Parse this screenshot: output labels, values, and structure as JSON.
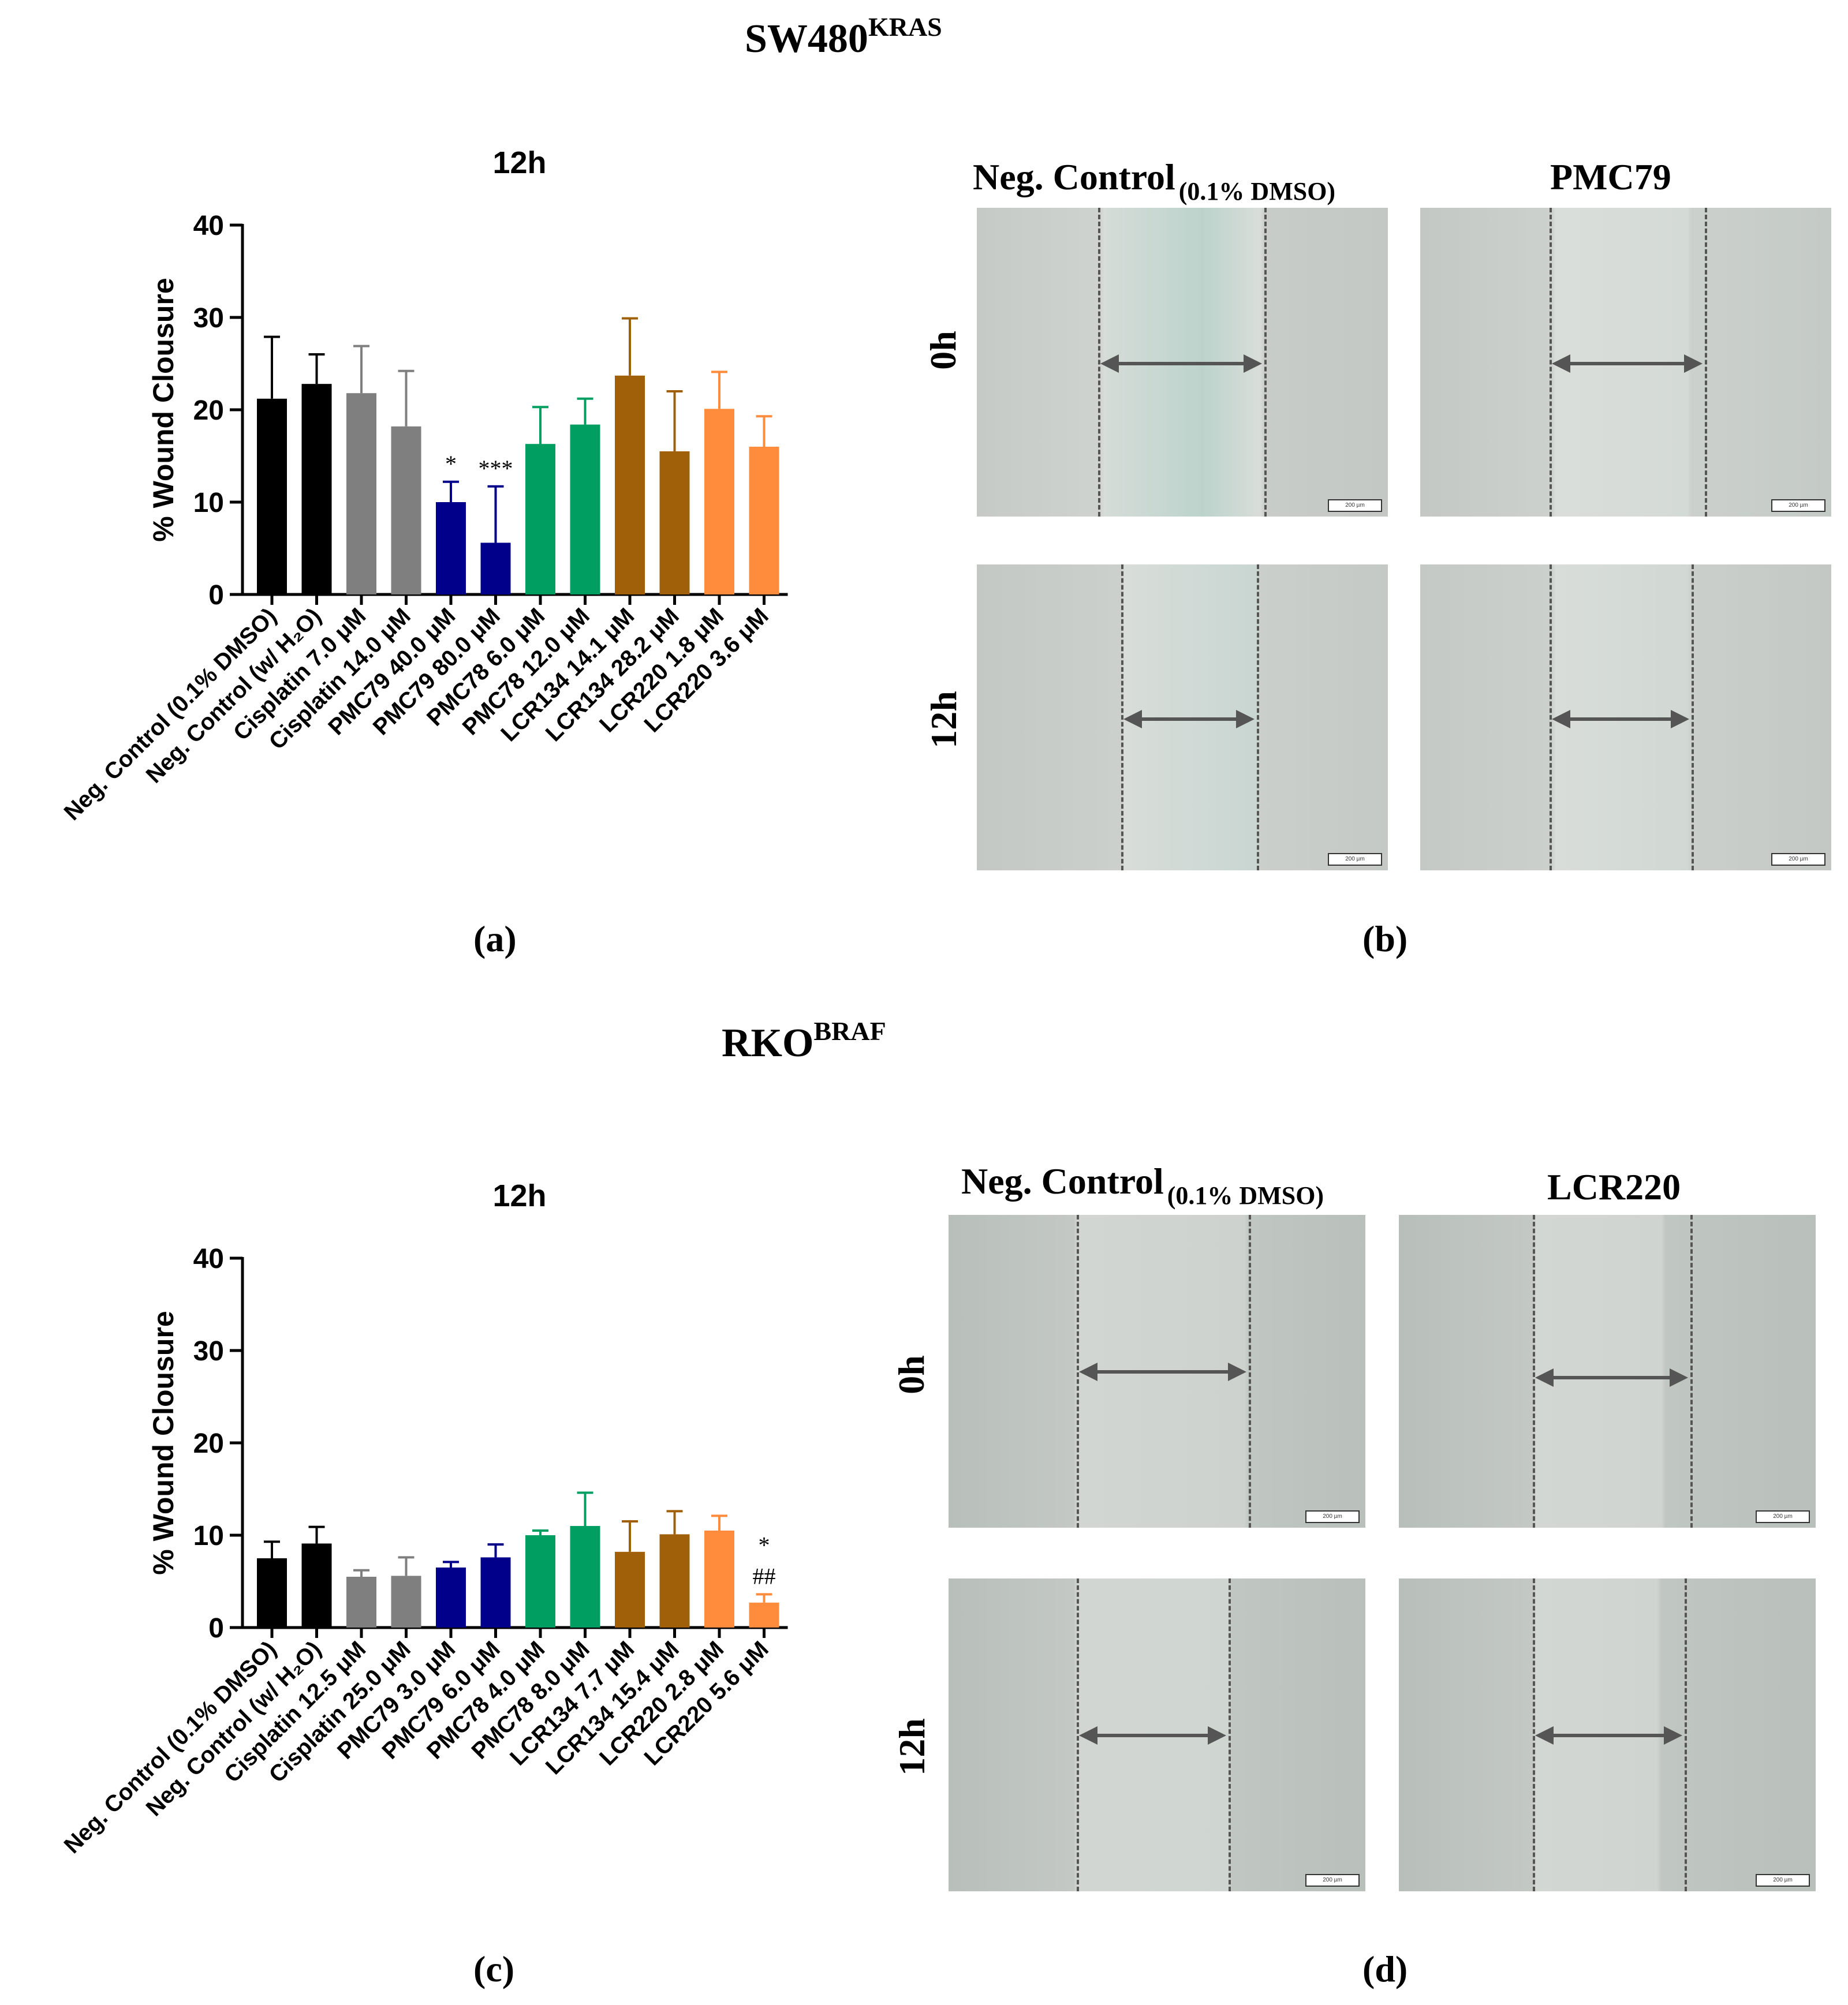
{
  "sections": [
    {
      "title_main": "SW480",
      "title_sup": "KRAS",
      "chart_label": "(a)",
      "image_label": "(b)",
      "images": {
        "left_title": "Neg. Control",
        "left_sub": "(0.1% DMSO)",
        "right_title": "PMC79",
        "row_labels": [
          "0h",
          "12h"
        ],
        "scale": "200 µm"
      }
    },
    {
      "title_main": "RKO",
      "title_sup": "BRAF",
      "chart_label": "(c)",
      "image_label": "(d)",
      "images": {
        "left_title": "Neg. Control",
        "left_sub": "(0.1% DMSO)",
        "right_title": "LCR220",
        "row_labels": [
          "0h",
          "12h"
        ],
        "scale": "200 µm"
      }
    }
  ],
  "chart_data": [
    {
      "type": "bar",
      "title": "12h",
      "ylabel": "% Wound Clousure",
      "xlabel": "",
      "ylim": [
        0,
        40
      ],
      "yticks": [
        0,
        10,
        20,
        30,
        40
      ],
      "categories": [
        "Neg. Control (0.1% DMSO)",
        "Neg. Control (w/ H₂O)",
        "Cisplatin 7.0 μM",
        "Cisplatin 14.0 μM",
        "PMC79 40.0 μM",
        "PMC79 80.0 μM",
        "PMC78 6.0 μM",
        "PMC78 12.0 μM",
        "LCR134 14.1 μM",
        "LCR134 28.2 μM",
        "LCR220 1.8 μM",
        "LCR220 3.6 μM"
      ],
      "values": [
        21.2,
        22.8,
        21.8,
        18.2,
        10.0,
        5.6,
        16.3,
        18.4,
        23.7,
        15.5,
        20.1,
        16.0
      ],
      "errors": [
        6.7,
        3.2,
        5.1,
        6.0,
        2.2,
        6.1,
        4.0,
        2.8,
        6.2,
        6.5,
        4.0,
        3.3
      ],
      "colors": [
        "#000000",
        "#000000",
        "#7f7f7f",
        "#7f7f7f",
        "#00008b",
        "#00008b",
        "#009e60",
        "#009e60",
        "#a0600a",
        "#a0600a",
        "#ff8c3c",
        "#ff8c3c"
      ],
      "annotations": [
        "",
        "",
        "",
        "",
        "*",
        "***",
        "",
        "",
        "",
        "",
        "",
        ""
      ]
    },
    {
      "type": "bar",
      "title": "12h",
      "ylabel": "% Wound Clousure",
      "xlabel": "",
      "ylim": [
        0,
        40
      ],
      "yticks": [
        0,
        10,
        20,
        30,
        40
      ],
      "categories": [
        "Neg. Control (0.1% DMSO)",
        "Neg. Control (w/ H₂O)",
        "Cisplatin 12.5 μM",
        "Cisplatin 25.0 μM",
        "PMC79 3.0 μM",
        "PMC79 6.0 μM",
        "PMC78 4.0 μM",
        "PMC78 8.0 μM",
        "LCR134 7.7 μM",
        "LCR134 15.4 μM",
        "LCR220 2.8 μM",
        "LCR220 5.6 μM"
      ],
      "values": [
        7.5,
        9.1,
        5.5,
        5.6,
        6.5,
        7.6,
        10.0,
        11.0,
        8.2,
        10.1,
        10.5,
        2.7
      ],
      "errors": [
        1.8,
        1.8,
        0.7,
        2.0,
        0.6,
        1.4,
        0.5,
        3.6,
        3.3,
        2.5,
        1.6,
        0.9
      ],
      "colors": [
        "#000000",
        "#000000",
        "#7f7f7f",
        "#7f7f7f",
        "#00008b",
        "#00008b",
        "#009e60",
        "#009e60",
        "#a0600a",
        "#a0600a",
        "#ff8c3c",
        "#ff8c3c"
      ],
      "annotations": [
        "",
        "",
        "",
        "",
        "",
        "",
        "",
        "",
        "",
        "",
        "",
        "* ##"
      ]
    }
  ]
}
